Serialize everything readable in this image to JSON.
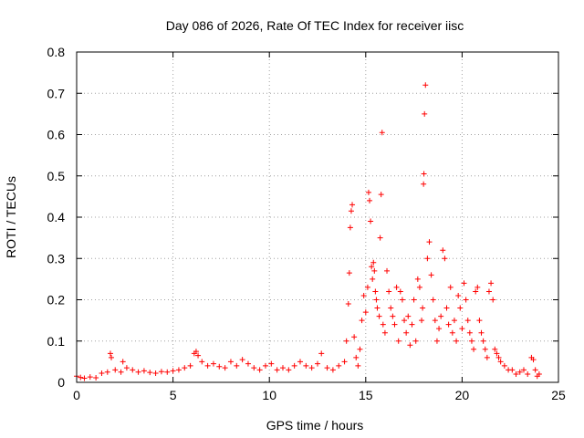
{
  "chart_data": {
    "type": "scatter",
    "title": "Day 086 of 2026, Rate Of TEC Index for receiver iisc",
    "xlabel": "GPS time / hours",
    "ylabel": "ROTI / TECUs",
    "xlim": [
      0,
      25
    ],
    "ylim": [
      0,
      0.8
    ],
    "xticks": [
      "0",
      "5",
      "10",
      "15",
      "20",
      "25"
    ],
    "yticks": [
      "0",
      "0.1",
      "0.2",
      "0.3",
      "0.4",
      "0.5",
      "0.6",
      "0.7",
      "0.8"
    ],
    "grid": true,
    "marker": "+",
    "series": [
      {
        "name": "ROTI",
        "color": "#ff0000",
        "x": [
          0.0,
          0.2,
          0.4,
          0.7,
          1.0,
          1.3,
          1.6,
          1.75,
          1.8,
          2.0,
          2.3,
          2.4,
          2.6,
          2.9,
          3.2,
          3.5,
          3.8,
          4.1,
          4.4,
          4.7,
          5.0,
          5.3,
          5.6,
          5.9,
          6.1,
          6.2,
          6.3,
          6.5,
          6.8,
          7.1,
          7.4,
          7.7,
          8.0,
          8.3,
          8.6,
          8.9,
          9.2,
          9.5,
          9.8,
          10.1,
          10.4,
          10.7,
          11.0,
          11.3,
          11.6,
          11.9,
          12.2,
          12.5,
          12.7,
          13.0,
          13.3,
          13.6,
          13.9,
          14.0,
          14.1,
          14.15,
          14.2,
          14.25,
          14.3,
          14.4,
          14.5,
          14.6,
          14.7,
          14.8,
          14.9,
          15.0,
          15.1,
          15.15,
          15.2,
          15.25,
          15.3,
          15.35,
          15.4,
          15.45,
          15.5,
          15.55,
          15.6,
          15.7,
          15.75,
          15.8,
          15.85,
          15.9,
          16.0,
          16.1,
          16.2,
          16.3,
          16.4,
          16.5,
          16.6,
          16.7,
          16.8,
          16.9,
          17.0,
          17.1,
          17.2,
          17.3,
          17.4,
          17.5,
          17.6,
          17.7,
          17.8,
          17.9,
          17.95,
          18.0,
          18.02,
          18.05,
          18.1,
          18.2,
          18.3,
          18.4,
          18.5,
          18.6,
          18.7,
          18.8,
          18.9,
          19.0,
          19.1,
          19.2,
          19.3,
          19.4,
          19.5,
          19.6,
          19.7,
          19.8,
          19.9,
          20.0,
          20.1,
          20.2,
          20.3,
          20.4,
          20.5,
          20.6,
          20.7,
          20.8,
          20.9,
          21.0,
          21.1,
          21.2,
          21.3,
          21.4,
          21.5,
          21.6,
          21.7,
          21.8,
          21.9,
          22.0,
          22.2,
          22.4,
          22.6,
          22.8,
          23.0,
          23.2,
          23.4,
          23.6,
          23.7,
          23.8,
          23.9,
          24.0
        ],
        "y": [
          0.015,
          0.012,
          0.01,
          0.013,
          0.011,
          0.022,
          0.025,
          0.07,
          0.06,
          0.03,
          0.025,
          0.05,
          0.035,
          0.03,
          0.025,
          0.028,
          0.024,
          0.022,
          0.026,
          0.025,
          0.028,
          0.03,
          0.035,
          0.04,
          0.07,
          0.075,
          0.065,
          0.05,
          0.04,
          0.045,
          0.038,
          0.035,
          0.05,
          0.04,
          0.055,
          0.045,
          0.035,
          0.03,
          0.04,
          0.045,
          0.03,
          0.035,
          0.03,
          0.04,
          0.05,
          0.04,
          0.035,
          0.045,
          0.07,
          0.035,
          0.03,
          0.04,
          0.05,
          0.1,
          0.19,
          0.265,
          0.375,
          0.415,
          0.43,
          0.11,
          0.06,
          0.04,
          0.08,
          0.15,
          0.21,
          0.17,
          0.23,
          0.46,
          0.44,
          0.39,
          0.28,
          0.25,
          0.29,
          0.27,
          0.22,
          0.2,
          0.18,
          0.16,
          0.35,
          0.455,
          0.605,
          0.14,
          0.12,
          0.27,
          0.22,
          0.18,
          0.16,
          0.14,
          0.23,
          0.1,
          0.22,
          0.2,
          0.15,
          0.12,
          0.16,
          0.09,
          0.14,
          0.2,
          0.1,
          0.25,
          0.23,
          0.15,
          0.18,
          0.48,
          0.505,
          0.65,
          0.72,
          0.3,
          0.34,
          0.26,
          0.2,
          0.15,
          0.1,
          0.13,
          0.16,
          0.32,
          0.3,
          0.18,
          0.14,
          0.23,
          0.12,
          0.15,
          0.1,
          0.21,
          0.18,
          0.13,
          0.24,
          0.2,
          0.15,
          0.12,
          0.1,
          0.08,
          0.22,
          0.23,
          0.15,
          0.12,
          0.1,
          0.08,
          0.06,
          0.22,
          0.24,
          0.2,
          0.08,
          0.07,
          0.06,
          0.05,
          0.04,
          0.03,
          0.03,
          0.02,
          0.025,
          0.03,
          0.02,
          0.06,
          0.055,
          0.03,
          0.015,
          0.02
        ]
      }
    ]
  }
}
